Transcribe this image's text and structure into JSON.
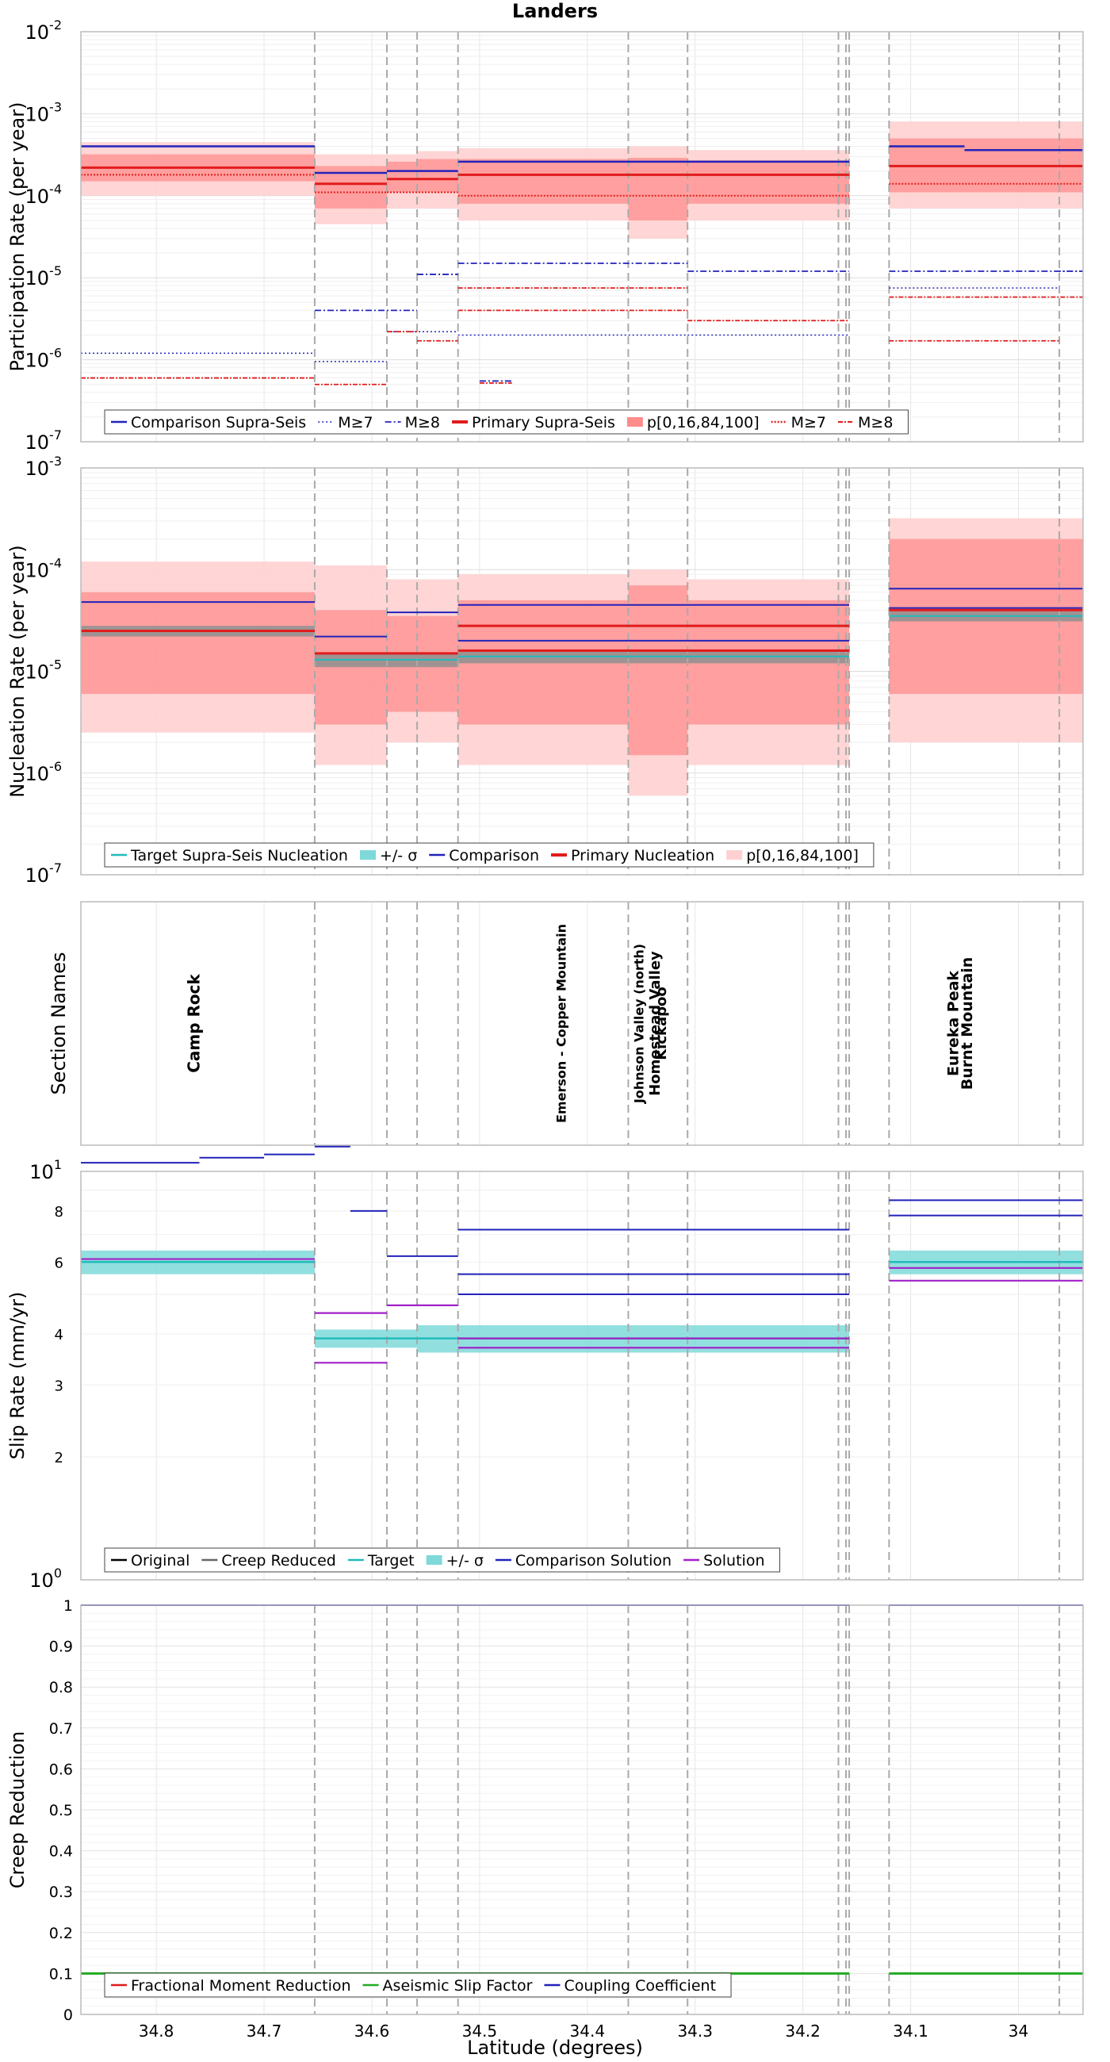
{
  "title": "Landers",
  "xlabel": "Latitude (degrees)",
  "xlim": [
    34.87,
    33.94
  ],
  "x_ticks": [
    34.8,
    34.7,
    34.6,
    34.5,
    34.4,
    34.3,
    34.2,
    34.1,
    34.0
  ],
  "x_tick_labels": [
    "34.8",
    "34.7",
    "34.6",
    "34.5",
    "34.4",
    "34.3",
    "34.2",
    "34.1",
    "34"
  ],
  "section_boundaries": [
    34.653,
    34.586,
    34.558,
    34.52,
    34.362,
    34.307,
    34.167,
    34.16,
    34.157,
    34.12,
    33.962
  ],
  "colors": {
    "comparison": "#2222bb",
    "primary": "#e11b1b",
    "band_light": "#ffd0d0",
    "band_dark": "#ff8c8c",
    "target": "#22bbbb",
    "sigma_band": "#7fd9d9",
    "solution": "#a020c8",
    "creep_reduced": "#666666",
    "original": "#000000",
    "aseismic": "#22aa22",
    "coupling": "#2222bb",
    "boundary": "#aaaaaa"
  },
  "chart_data": [
    {
      "id": "participation",
      "type": "line",
      "yscale": "log",
      "ylabel": "Participation Rate (per year)",
      "ylim": [
        1e-07,
        0.01
      ],
      "y_ticks": [
        {
          "base": "10",
          "exp": "-7"
        },
        {
          "base": "10",
          "exp": "-6"
        },
        {
          "base": "10",
          "exp": "-5"
        },
        {
          "base": "10",
          "exp": "-4"
        },
        {
          "base": "10",
          "exp": "-3"
        },
        {
          "base": "10",
          "exp": "-2"
        }
      ],
      "legend": [
        "Comparison Supra-Seis",
        "M≥7",
        "M≥8",
        "Primary Supra-Seis",
        "p[0,16,84,100]",
        "M≥7",
        "M≥8"
      ],
      "bands": [
        {
          "x0": 34.87,
          "x1": 34.653,
          "p0": 0.0001,
          "p16": 0.00015,
          "p84": 0.00032,
          "p100": 0.00045
        },
        {
          "x0": 34.653,
          "x1": 34.586,
          "p0": 4.5e-05,
          "p16": 7e-05,
          "p84": 0.00023,
          "p100": 0.00032
        },
        {
          "x0": 34.586,
          "x1": 34.558,
          "p0": 7e-05,
          "p16": 0.00011,
          "p84": 0.00026,
          "p100": 0.00032
        },
        {
          "x0": 34.558,
          "x1": 34.52,
          "p0": 7e-05,
          "p16": 0.00011,
          "p84": 0.00028,
          "p100": 0.00035
        },
        {
          "x0": 34.52,
          "x1": 34.362,
          "p0": 5e-05,
          "p16": 8e-05,
          "p84": 0.00028,
          "p100": 0.00038
        },
        {
          "x0": 34.362,
          "x1": 34.307,
          "p0": 3e-05,
          "p16": 5e-05,
          "p84": 0.00029,
          "p100": 0.0004
        },
        {
          "x0": 34.307,
          "x1": 34.157,
          "p0": 5e-05,
          "p16": 8e-05,
          "p84": 0.00027,
          "p100": 0.00036
        },
        {
          "x0": 34.12,
          "x1": 33.94,
          "p0": 7e-05,
          "p16": 0.00011,
          "p84": 0.0005,
          "p100": 0.0008
        }
      ],
      "series": [
        {
          "name": "Comparison Supra-Seis",
          "color": "#2222bb",
          "dash": "",
          "width": 2.5,
          "segments": [
            [
              34.87,
              34.653,
              0.0004
            ],
            [
              34.653,
              34.586,
              0.00019
            ],
            [
              34.586,
              34.52,
              0.0002
            ],
            [
              34.52,
              34.157,
              0.00026
            ],
            [
              34.12,
              34.05,
              0.0004
            ],
            [
              34.05,
              33.94,
              0.00036
            ]
          ]
        },
        {
          "name": "Comparison M≥7",
          "color": "#2222bb",
          "dash": "2 3",
          "width": 1.5,
          "segments": [
            [
              34.87,
              34.653,
              1.2e-06
            ],
            [
              34.653,
              34.586,
              9.5e-07
            ],
            [
              34.586,
              34.52,
              2.2e-06
            ],
            [
              34.52,
              34.307,
              2e-06
            ],
            [
              34.307,
              34.157,
              2e-06
            ],
            [
              34.12,
              33.962,
              7.5e-06
            ],
            [
              33.962,
              33.94,
              1.2e-05
            ]
          ]
        },
        {
          "name": "Comparison M≥8",
          "color": "#2222bb",
          "dash": "8 3 2 3",
          "width": 1.8,
          "segments": [
            [
              34.653,
              34.558,
              4e-06
            ],
            [
              34.558,
              34.52,
              1.1e-05
            ],
            [
              34.52,
              34.307,
              1.5e-05
            ],
            [
              34.307,
              34.157,
              1.2e-05
            ],
            [
              34.12,
              33.94,
              1.2e-05
            ],
            [
              34.5,
              34.47,
              5.5e-07
            ]
          ]
        },
        {
          "name": "Primary Supra-Seis",
          "color": "#e11b1b",
          "dash": "",
          "width": 3,
          "segments": [
            [
              34.87,
              34.653,
              0.00022
            ],
            [
              34.653,
              34.586,
              0.00014
            ],
            [
              34.586,
              34.52,
              0.00016
            ],
            [
              34.52,
              34.157,
              0.00018
            ],
            [
              34.12,
              33.94,
              0.00023
            ]
          ]
        },
        {
          "name": "Primary M≥7",
          "color": "#e11b1b",
          "dash": "2 2",
          "width": 2,
          "segments": [
            [
              34.87,
              34.653,
              0.00018
            ],
            [
              34.653,
              34.586,
              0.00011
            ],
            [
              34.586,
              34.52,
              0.00011
            ],
            [
              34.52,
              34.157,
              0.0001
            ],
            [
              34.12,
              33.94,
              0.00014
            ]
          ]
        },
        {
          "name": "Primary M≥8",
          "color": "#e11b1b",
          "dash": "6 2 2 2",
          "width": 1.8,
          "segments": [
            [
              34.87,
              34.653,
              6e-07
            ],
            [
              34.653,
              34.586,
              5e-07
            ],
            [
              34.586,
              34.558,
              2.2e-06
            ],
            [
              34.558,
              34.52,
              1.7e-06
            ],
            [
              34.52,
              34.307,
              4e-06
            ],
            [
              34.307,
              34.157,
              3e-06
            ],
            [
              34.12,
              33.962,
              1.7e-06
            ],
            [
              34.12,
              33.94,
              5.8e-06
            ],
            [
              34.52,
              34.307,
              7.5e-06
            ],
            [
              34.5,
              34.47,
              5.2e-07
            ]
          ]
        }
      ]
    },
    {
      "id": "nucleation",
      "type": "line",
      "yscale": "log",
      "ylabel": "Nucleation Rate (per year)",
      "ylim": [
        1e-07,
        0.001
      ],
      "y_ticks": [
        {
          "base": "10",
          "exp": "-7"
        },
        {
          "base": "10",
          "exp": "-6"
        },
        {
          "base": "10",
          "exp": "-5"
        },
        {
          "base": "10",
          "exp": "-4"
        },
        {
          "base": "10",
          "exp": "-3"
        }
      ],
      "legend": [
        "Target Supra-Seis Nucleation",
        "+/- σ",
        "Comparison",
        "Primary Nucleation",
        "p[0,16,84,100]"
      ],
      "bands": [
        {
          "x0": 34.87,
          "x1": 34.653,
          "p0": 2.5e-06,
          "p16": 6e-06,
          "p84": 6e-05,
          "p100": 0.00012
        },
        {
          "x0": 34.653,
          "x1": 34.586,
          "p0": 1.2e-06,
          "p16": 3e-06,
          "p84": 4e-05,
          "p100": 0.00011
        },
        {
          "x0": 34.586,
          "x1": 34.52,
          "p0": 2e-06,
          "p16": 4e-06,
          "p84": 3.5e-05,
          "p100": 8e-05
        },
        {
          "x0": 34.52,
          "x1": 34.362,
          "p0": 1.2e-06,
          "p16": 3e-06,
          "p84": 5e-05,
          "p100": 9e-05
        },
        {
          "x0": 34.362,
          "x1": 34.307,
          "p0": 6e-07,
          "p16": 1.5e-06,
          "p84": 7e-05,
          "p100": 0.0001
        },
        {
          "x0": 34.307,
          "x1": 34.157,
          "p0": 1.2e-06,
          "p16": 3e-06,
          "p84": 5e-05,
          "p100": 8e-05
        },
        {
          "x0": 34.12,
          "x1": 33.94,
          "p0": 2e-06,
          "p16": 6e-06,
          "p84": 0.0002,
          "p100": 0.00032
        }
      ],
      "target_bands": [
        {
          "x0": 34.87,
          "x1": 34.653,
          "lo": 2.2e-05,
          "hi": 2.8e-05
        },
        {
          "x0": 34.653,
          "x1": 34.52,
          "lo": 1.1e-05,
          "hi": 1.5e-05
        },
        {
          "x0": 34.52,
          "x1": 34.157,
          "lo": 1.2e-05,
          "hi": 1.6e-05
        },
        {
          "x0": 34.12,
          "x1": 33.94,
          "lo": 3.1e-05,
          "hi": 3.9e-05
        }
      ],
      "series": [
        {
          "name": "Target Supra-Seis Nucleation",
          "color": "#22bbbb",
          "dash": "",
          "width": 2,
          "segments": [
            [
              34.87,
              34.653,
              2.5e-05
            ],
            [
              34.653,
              34.52,
              1.3e-05
            ],
            [
              34.52,
              34.157,
              1.4e-05
            ],
            [
              34.12,
              33.94,
              3.5e-05
            ]
          ]
        },
        {
          "name": "Comparison",
          "color": "#2222bb",
          "dash": "",
          "width": 2,
          "segments": [
            [
              34.87,
              34.653,
              4.8e-05
            ],
            [
              34.653,
              34.586,
              2.2e-05
            ],
            [
              34.586,
              34.52,
              3.8e-05
            ],
            [
              34.52,
              34.157,
              4.5e-05
            ],
            [
              34.52,
              34.157,
              2e-05
            ],
            [
              34.12,
              33.94,
              6.5e-05
            ],
            [
              34.12,
              33.94,
              4.2e-05
            ]
          ]
        },
        {
          "name": "Primary Nucleation",
          "color": "#e11b1b",
          "dash": "",
          "width": 3,
          "segments": [
            [
              34.87,
              34.653,
              2.5e-05
            ],
            [
              34.653,
              34.52,
              1.5e-05
            ],
            [
              34.52,
              34.157,
              1.6e-05
            ],
            [
              34.52,
              34.157,
              2.8e-05
            ],
            [
              34.12,
              33.94,
              4e-05
            ]
          ]
        }
      ]
    },
    {
      "id": "section_names",
      "type": "table",
      "ylabel": "Section Names",
      "labels": [
        {
          "text": "Camp Rock",
          "lat": 34.76,
          "size": 20,
          "weight": "bold"
        },
        {
          "text": "Emerson - Copper Mountain",
          "lat": 34.42,
          "size": 16,
          "weight": "bold"
        },
        {
          "text": "Johnson Valley (north)",
          "lat": 34.348,
          "size": 16,
          "weight": "bold"
        },
        {
          "text": "Homestead Valley",
          "lat": 34.333,
          "size": 18,
          "weight": "bold"
        },
        {
          "text": "Kickapoo",
          "lat": 34.327,
          "size": 18,
          "weight": "bold"
        },
        {
          "text": "Eureka Peak",
          "lat": 34.056,
          "size": 19,
          "weight": "bold"
        },
        {
          "text": "Burnt Mountain",
          "lat": 34.043,
          "size": 19,
          "weight": "bold"
        }
      ]
    },
    {
      "id": "slip",
      "type": "line",
      "yscale": "log",
      "ylabel": "Slip Rate (mm/yr)",
      "ylim": [
        1,
        10
      ],
      "y_ticks": [
        {
          "base": "10",
          "exp": "0"
        },
        {
          "base": "10",
          "exp": "1"
        }
      ],
      "minor_ticks": [
        2,
        3,
        4,
        6,
        8
      ],
      "legend": [
        "Original",
        "Creep Reduced",
        "Target",
        "+/- σ",
        "Comparison Solution",
        "Solution"
      ],
      "target_bands": [
        {
          "x0": 34.87,
          "x1": 34.653,
          "lo": 5.6,
          "hi": 6.4
        },
        {
          "x0": 34.653,
          "x1": 34.558,
          "lo": 3.7,
          "hi": 4.1
        },
        {
          "x0": 34.558,
          "x1": 34.157,
          "lo": 3.6,
          "hi": 4.2
        },
        {
          "x0": 34.12,
          "x1": 33.94,
          "lo": 5.6,
          "hi": 6.4
        }
      ],
      "series": [
        {
          "name": "Target",
          "color": "#22bbbb",
          "dash": "",
          "width": 2.5,
          "segments": [
            [
              34.87,
              34.653,
              6.0
            ],
            [
              34.653,
              34.558,
              3.9
            ],
            [
              34.558,
              34.157,
              3.9
            ],
            [
              34.12,
              33.94,
              6.0
            ]
          ]
        },
        {
          "name": "Comparison Solution",
          "color": "#2222bb",
          "dash": "",
          "width": 2,
          "segments": [
            [
              34.87,
              34.76,
              10.5
            ],
            [
              34.76,
              34.7,
              10.8
            ],
            [
              34.7,
              34.653,
              11.0
            ],
            [
              34.653,
              34.62,
              11.5
            ],
            [
              34.62,
              34.586,
              8.0
            ],
            [
              34.586,
              34.52,
              6.2
            ],
            [
              34.52,
              34.157,
              7.2
            ],
            [
              34.52,
              34.157,
              5.6
            ],
            [
              34.52,
              34.157,
              5.0
            ],
            [
              34.12,
              33.94,
              8.5
            ],
            [
              34.12,
              33.94,
              7.8
            ]
          ]
        },
        {
          "name": "Solution",
          "color": "#a020c8",
          "dash": "",
          "width": 2.2,
          "segments": [
            [
              34.87,
              34.653,
              6.1
            ],
            [
              34.653,
              34.586,
              3.4
            ],
            [
              34.653,
              34.586,
              4.5
            ],
            [
              34.586,
              34.52,
              4.7
            ],
            [
              34.52,
              34.157,
              3.7
            ],
            [
              34.52,
              34.157,
              3.9
            ],
            [
              34.12,
              33.94,
              5.8
            ],
            [
              34.12,
              33.94,
              5.4
            ]
          ]
        }
      ]
    },
    {
      "id": "creep",
      "type": "line",
      "yscale": "linear",
      "ylabel": "Creep Reduction",
      "ylim": [
        0,
        1
      ],
      "y_tick_values": [
        0,
        0.1,
        0.2,
        0.3,
        0.4,
        0.5,
        0.6,
        0.7,
        0.8,
        0.9,
        1
      ],
      "y_tick_labels": [
        "0",
        "0.1",
        "0.2",
        "0.3",
        "0.4",
        "0.5",
        "0.6",
        "0.7",
        "0.8",
        "0.9",
        "1"
      ],
      "legend": [
        "Fractional Moment Reduction",
        "Aseismic Slip Factor",
        "Coupling Coefficient"
      ],
      "series": [
        {
          "name": "Coupling Coefficient",
          "color": "#2222bb",
          "dash": "",
          "width": 2,
          "segments": [
            [
              34.87,
              34.157,
              1.0
            ],
            [
              34.12,
              33.94,
              1.0
            ]
          ]
        },
        {
          "name": "Aseismic Slip Factor",
          "color": "#22aa22",
          "dash": "",
          "width": 3,
          "segments": [
            [
              34.87,
              34.157,
              0.1
            ],
            [
              34.12,
              33.94,
              0.1
            ]
          ]
        }
      ]
    }
  ]
}
